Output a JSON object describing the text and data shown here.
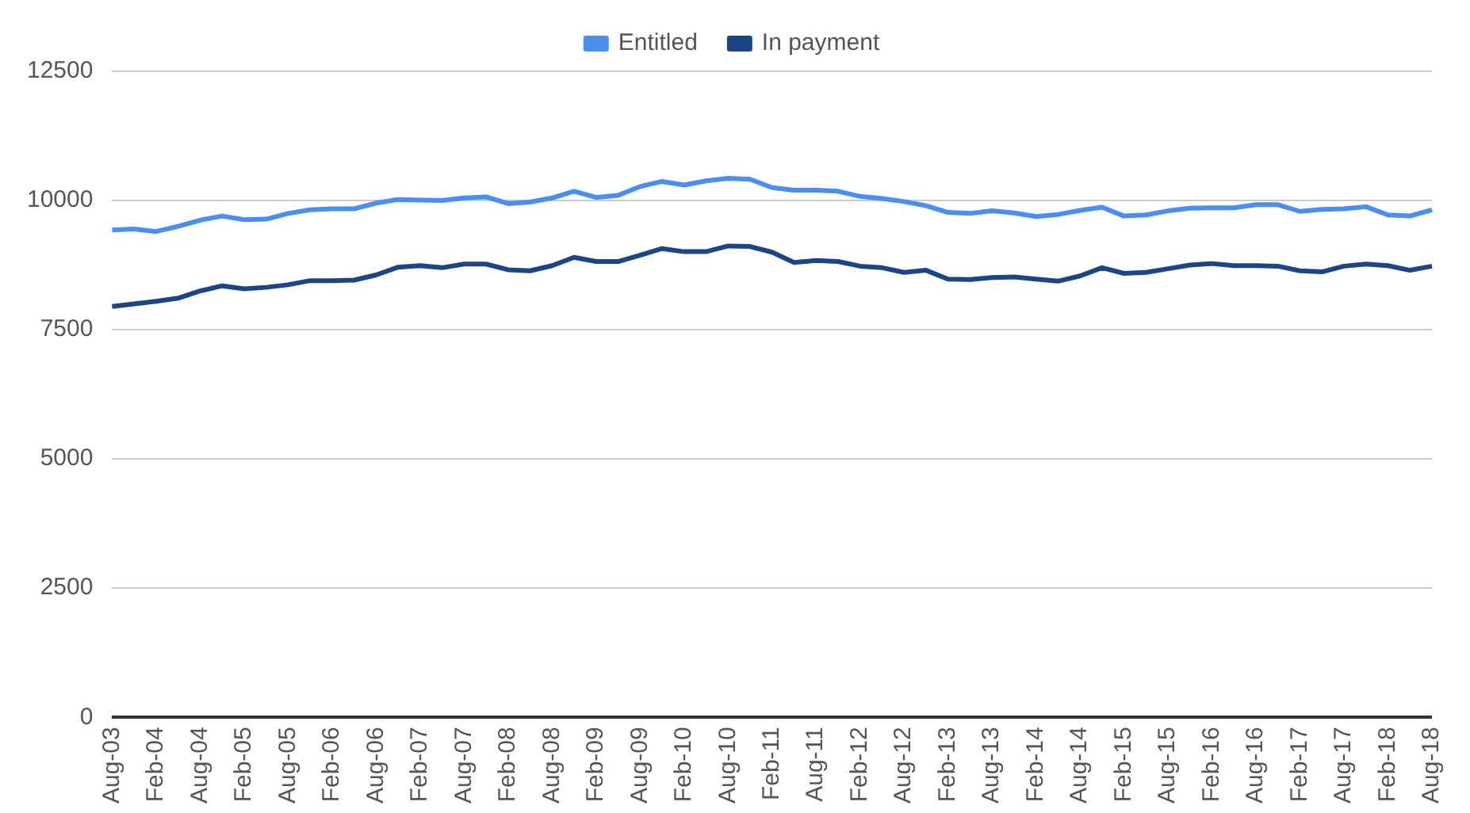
{
  "chart_data": {
    "type": "line",
    "categories": [
      "Aug-03",
      null,
      "Feb-04",
      null,
      "Aug-04",
      null,
      "Feb-05",
      null,
      "Aug-05",
      null,
      "Feb-06",
      null,
      "Aug-06",
      null,
      "Feb-07",
      null,
      "Aug-07",
      null,
      "Feb-08",
      null,
      "Aug-08",
      null,
      "Feb-09",
      null,
      "Aug-09",
      null,
      "Feb-10",
      null,
      "Aug-10",
      null,
      "Feb-11",
      null,
      "Aug-11",
      null,
      "Feb-12",
      null,
      "Aug-12",
      null,
      "Feb-13",
      null,
      "Aug-13",
      null,
      "Feb-14",
      null,
      "Aug-14",
      null,
      "Feb-15",
      null,
      "Aug-15",
      null,
      "Feb-16",
      null,
      "Aug-16",
      null,
      "Feb-17",
      null,
      "Aug-17",
      null,
      "Feb-18",
      null,
      "Aug-18"
    ],
    "series": [
      {
        "name": "Entitled",
        "color": "#4a8ef0",
        "values": [
          9430,
          9450,
          9400,
          9500,
          9620,
          9700,
          9630,
          9640,
          9750,
          9820,
          9840,
          9840,
          9950,
          10020,
          10010,
          10000,
          10050,
          10070,
          9940,
          9970,
          10050,
          10180,
          10060,
          10100,
          10270,
          10370,
          10300,
          10380,
          10430,
          10410,
          10250,
          10200,
          10200,
          10180,
          10080,
          10040,
          9980,
          9900,
          9770,
          9750,
          9800,
          9760,
          9690,
          9730,
          9810,
          9870,
          9700,
          9720,
          9800,
          9850,
          9860,
          9860,
          9920,
          9920,
          9790,
          9830,
          9840,
          9880,
          9720,
          9700,
          9820
        ]
      },
      {
        "name": "In payment",
        "color": "#1c4587",
        "values": [
          7950,
          8000,
          8050,
          8110,
          8250,
          8350,
          8290,
          8320,
          8370,
          8450,
          8450,
          8460,
          8560,
          8710,
          8740,
          8700,
          8770,
          8770,
          8660,
          8640,
          8740,
          8900,
          8820,
          8820,
          8940,
          9070,
          9010,
          9010,
          9120,
          9110,
          9000,
          8800,
          8840,
          8820,
          8730,
          8700,
          8610,
          8650,
          8480,
          8470,
          8510,
          8520,
          8480,
          8440,
          8540,
          8700,
          8590,
          8610,
          8680,
          8750,
          8780,
          8740,
          8740,
          8730,
          8640,
          8620,
          8730,
          8770,
          8740,
          8650,
          8730
        ]
      }
    ],
    "ylim": [
      0,
      12500
    ],
    "yticks": [
      0,
      2500,
      5000,
      7500,
      10000,
      12500
    ],
    "grid": "y",
    "legend": "top",
    "marker": "none",
    "line_style": "solid"
  }
}
